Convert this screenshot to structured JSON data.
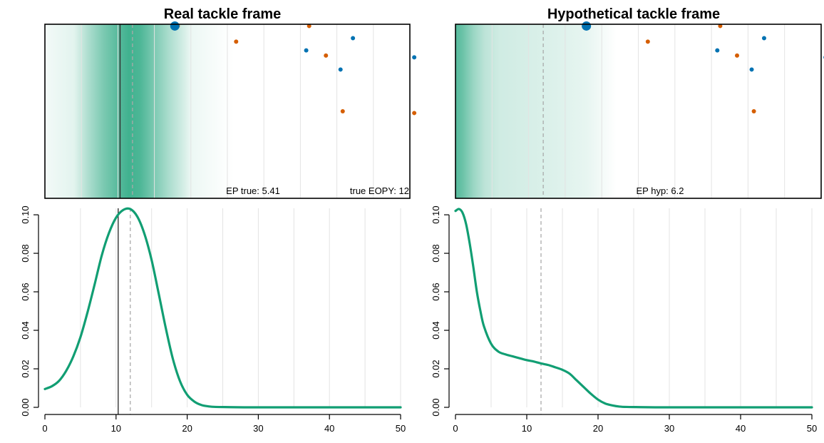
{
  "colors": {
    "ball_carrier": "#0072B2",
    "offense": "#0072B2",
    "defense": "#D55E00",
    "density_line": "#119E73",
    "shade": "#119E73",
    "grid": "#e3e3e3",
    "dashed_line": "#aaaaaa"
  },
  "chart_data": [
    {
      "type": "scatter",
      "panel": "field",
      "title": "Real tackle frame",
      "annotations": {
        "ep": "EP true: 5.41",
        "eopy": "true EOPY: 12"
      },
      "xlim": [
        0,
        50
      ],
      "ylim": [
        0,
        1
      ],
      "grid": "vertical",
      "vline_solid": 10.3,
      "vline_dashed": 12,
      "shade_profile": [
        [
          0,
          0.05
        ],
        [
          4,
          0.12
        ],
        [
          6,
          0.35
        ],
        [
          8,
          0.55
        ],
        [
          10,
          0.7
        ],
        [
          11.5,
          0.8
        ],
        [
          13,
          0.75
        ],
        [
          15,
          0.55
        ],
        [
          17,
          0.35
        ],
        [
          19,
          0.18
        ],
        [
          20,
          0.08
        ],
        [
          24,
          0.02
        ],
        [
          26,
          0
        ]
      ],
      "ball_carrier": {
        "x": 17.8,
        "y": 0.99
      },
      "defense": [
        [
          18.2,
          0.99
        ],
        [
          26.2,
          0.9
        ],
        [
          36.2,
          0.99
        ],
        [
          38.5,
          0.82
        ],
        [
          40.8,
          0.5
        ],
        [
          50.6,
          0.49
        ]
      ],
      "offense": [
        [
          42.2,
          0.92
        ],
        [
          35.8,
          0.85
        ],
        [
          40.5,
          0.74
        ],
        [
          50.6,
          0.81
        ]
      ]
    },
    {
      "type": "scatter",
      "panel": "field",
      "title": "Hypothetical tackle frame",
      "annotations": {
        "ep": "EP hyp: 6.2"
      },
      "xlim": [
        0,
        50
      ],
      "ylim": [
        0,
        1
      ],
      "grid": "vertical",
      "vline_dashed": 12,
      "shade_profile": [
        [
          0,
          0.72
        ],
        [
          1,
          0.62
        ],
        [
          2.5,
          0.42
        ],
        [
          4,
          0.28
        ],
        [
          6,
          0.2
        ],
        [
          10,
          0.17
        ],
        [
          14,
          0.14
        ],
        [
          18,
          0.1
        ],
        [
          20,
          0.05
        ],
        [
          22,
          0
        ]
      ],
      "ball_carrier": {
        "x": 17.9,
        "y": 0.99
      },
      "defense": [
        [
          26.3,
          0.9
        ],
        [
          36.2,
          0.99
        ],
        [
          38.5,
          0.82
        ],
        [
          40.8,
          0.5
        ],
        [
          50.8,
          0.49
        ]
      ],
      "offense": [
        [
          42.2,
          0.92
        ],
        [
          35.8,
          0.85
        ],
        [
          40.5,
          0.74
        ],
        [
          50.6,
          0.81
        ]
      ]
    },
    {
      "type": "line",
      "panel": "density",
      "xlim": [
        0,
        50
      ],
      "ylim": [
        -0.002,
        0.105
      ],
      "xticks": [
        "0",
        "10",
        "20",
        "30",
        "40",
        "50"
      ],
      "yticks": [
        "0.00",
        "0.02",
        "0.04",
        "0.06",
        "0.08",
        "0.10"
      ],
      "grid": "vertical",
      "vline_solid": 10.3,
      "vline_dashed": 12,
      "x": [
        0,
        1,
        2,
        3,
        4,
        5,
        6,
        7,
        8,
        9,
        10,
        11,
        12,
        13,
        14,
        15,
        16,
        17,
        18,
        19,
        20,
        21,
        22,
        23,
        24,
        26,
        28,
        30,
        35,
        40,
        45,
        50
      ],
      "y": [
        0.0095,
        0.011,
        0.0138,
        0.019,
        0.0265,
        0.0365,
        0.0495,
        0.064,
        0.079,
        0.0905,
        0.0985,
        0.1025,
        0.103,
        0.099,
        0.09,
        0.0765,
        0.059,
        0.041,
        0.025,
        0.0135,
        0.0065,
        0.003,
        0.0012,
        0.0005,
        0.0002,
        0.0001,
        0.0,
        0.0,
        0.0,
        0.0,
        0.0,
        0.0
      ]
    },
    {
      "type": "line",
      "panel": "density",
      "xlim": [
        0,
        50
      ],
      "ylim": [
        -0.002,
        0.105
      ],
      "xticks": [
        "0",
        "10",
        "20",
        "30",
        "40",
        "50"
      ],
      "yticks": [
        "0.00",
        "0.02",
        "0.04",
        "0.06",
        "0.08",
        "0.10"
      ],
      "grid": "vertical",
      "vline_dashed": 12,
      "x": [
        0,
        0.5,
        1,
        1.5,
        2,
        2.5,
        3,
        3.5,
        4,
        5,
        6,
        7,
        8,
        9,
        10,
        11,
        12,
        13,
        14,
        15,
        16,
        17,
        18,
        19,
        20,
        21,
        22,
        23,
        24,
        26,
        28,
        30,
        35,
        40,
        45,
        50
      ],
      "y": [
        0.102,
        0.103,
        0.101,
        0.095,
        0.085,
        0.073,
        0.06,
        0.05,
        0.042,
        0.033,
        0.029,
        0.0275,
        0.0265,
        0.0255,
        0.0245,
        0.0238,
        0.0228,
        0.022,
        0.0208,
        0.0195,
        0.0175,
        0.014,
        0.0105,
        0.007,
        0.004,
        0.002,
        0.001,
        0.0004,
        0.0002,
        0.0001,
        0.0,
        0.0,
        0.0,
        0.0,
        0.0,
        0.0
      ]
    }
  ]
}
